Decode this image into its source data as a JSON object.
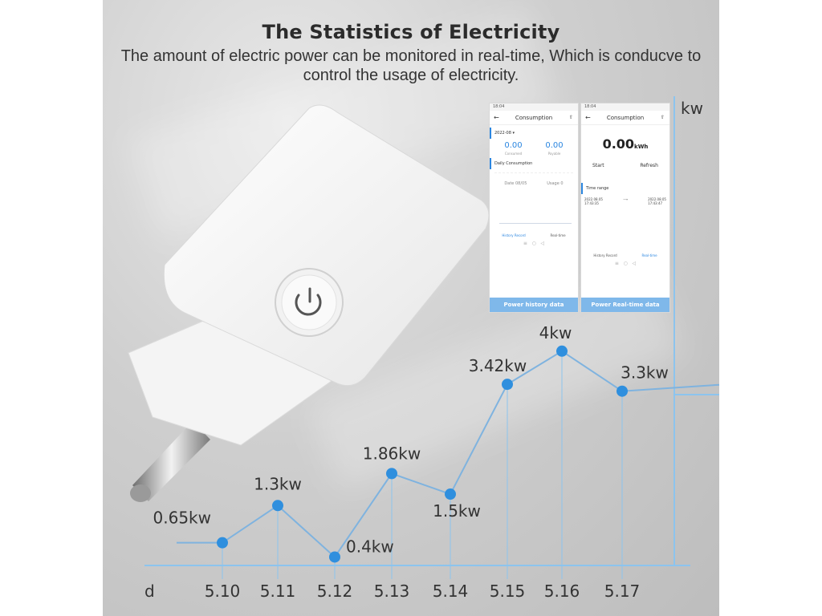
{
  "header": {
    "title": "The Statistics of Electricity",
    "subtitle": "The amount of electric power can be monitored in real-time, Which is conducve to control the usage of electricity."
  },
  "phone_left": {
    "status_time": "18:04",
    "title": "Consumption",
    "month": "2022-08 ▾",
    "consumed_value": "0.00",
    "consumed_label": "Consumed",
    "payable_value": "0.00",
    "payable_label": "Payable",
    "section": "Daily Consumption",
    "date_text": "Date 08/05",
    "usage_text": "Usage 0",
    "tab_history": "History Record",
    "tab_realtime": "Real-time",
    "banner": "Power history data"
  },
  "phone_right": {
    "status_time": "18:04",
    "title": "Consumption",
    "value": "0.00",
    "unit": "kWh",
    "start": "Start",
    "refresh": "Refresh",
    "section": "Time range",
    "from_date": "2022.08.05",
    "from_time": "17:43:35",
    "to_date": "2022.08.05",
    "to_time": "17:43:47",
    "tab_history": "History Record",
    "tab_realtime": "Real-time",
    "banner": "Power Real-time data"
  },
  "colors": {
    "line": "#7fb3df",
    "point": "#2f8fde",
    "axis": "#8cc4ee",
    "banner": "#7fb8ea"
  },
  "chart_data": {
    "type": "line",
    "xlabel": "d",
    "ylabel": "kw",
    "categories": [
      "5.10",
      "5.11",
      "5.12",
      "5.13",
      "5.14",
      "5.15",
      "5.16",
      "5.17"
    ],
    "values": [
      0.65,
      1.3,
      0.4,
      1.86,
      1.5,
      3.42,
      4,
      3.3
    ],
    "labels": [
      "0.65kw",
      "1.3kw",
      "0.4kw",
      "1.86kw",
      "1.5kw",
      "3.42kw",
      "4kw",
      "3.3kw"
    ],
    "grid": false
  }
}
